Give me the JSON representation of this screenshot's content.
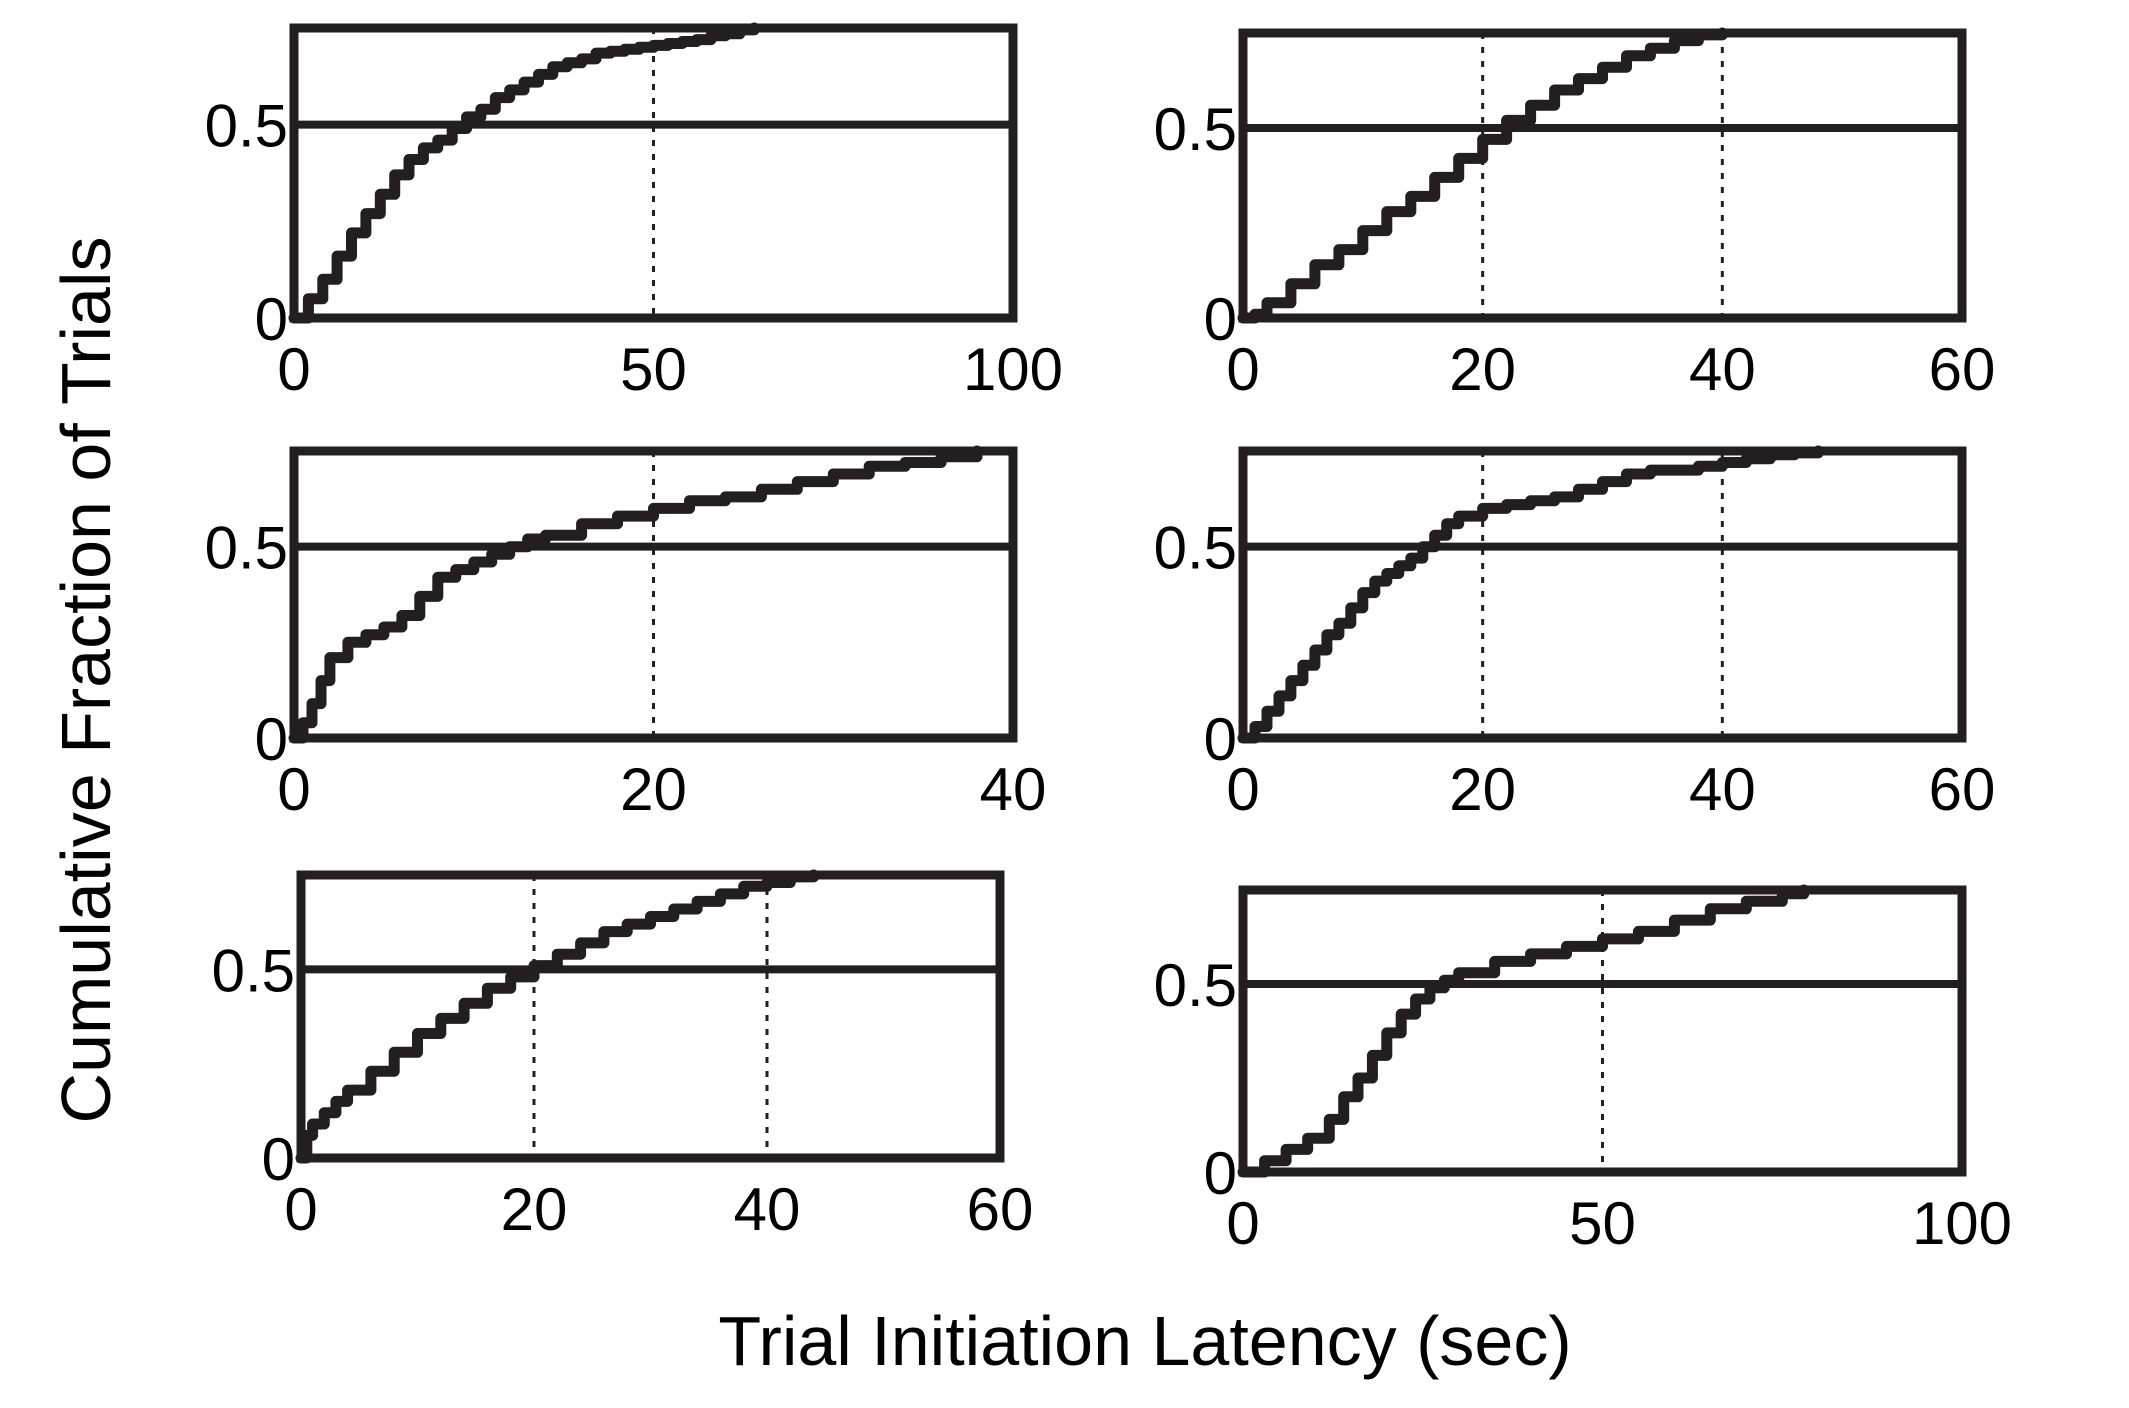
{
  "figure": {
    "ylabel": "Cumulative Fraction of Trials",
    "xlabel": "Trial Initiation Latency (sec)"
  },
  "colors": {
    "line": "#231f20",
    "background": "#ffffff"
  },
  "chart_data": [
    {
      "type": "line",
      "id": "p1",
      "xlim": [
        0,
        100
      ],
      "ylim": [
        0,
        0.75
      ],
      "xticks": [
        0,
        50,
        100
      ],
      "xtick_labels": [
        "0",
        "50",
        "100"
      ],
      "yticks": [
        0,
        0.5
      ],
      "ytick_labels": [
        "0",
        "0.5"
      ],
      "hline": 0.5,
      "vlines": [
        50
      ],
      "x": [
        0,
        2,
        4,
        6,
        8,
        10,
        12,
        14,
        16,
        18,
        20,
        22,
        24,
        26,
        28,
        30,
        32,
        34,
        36,
        38,
        40,
        42,
        44,
        46,
        48,
        50,
        52,
        54,
        56,
        58,
        60,
        62,
        64
      ],
      "y": [
        0,
        0.05,
        0.1,
        0.16,
        0.22,
        0.27,
        0.32,
        0.37,
        0.41,
        0.44,
        0.46,
        0.49,
        0.52,
        0.54,
        0.57,
        0.59,
        0.61,
        0.63,
        0.65,
        0.66,
        0.67,
        0.685,
        0.69,
        0.695,
        0.7,
        0.705,
        0.71,
        0.715,
        0.72,
        0.73,
        0.735,
        0.745,
        0.75
      ]
    },
    {
      "type": "line",
      "id": "p2",
      "xlim": [
        0,
        60
      ],
      "ylim": [
        0,
        0.75
      ],
      "xticks": [
        0,
        20,
        40,
        60
      ],
      "xtick_labels": [
        "0",
        "20",
        "40",
        "60"
      ],
      "yticks": [
        0,
        0.5
      ],
      "ytick_labels": [
        "0",
        "0.5"
      ],
      "hline": 0.5,
      "vlines": [
        20,
        40
      ],
      "x": [
        0,
        1,
        2,
        4,
        6,
        8,
        10,
        12,
        14,
        16,
        18,
        20,
        22,
        24,
        26,
        28,
        30,
        32,
        34,
        36,
        38,
        40
      ],
      "y": [
        0,
        0.01,
        0.04,
        0.09,
        0.14,
        0.18,
        0.23,
        0.28,
        0.32,
        0.37,
        0.42,
        0.47,
        0.52,
        0.56,
        0.6,
        0.63,
        0.66,
        0.69,
        0.71,
        0.73,
        0.745,
        0.75
      ]
    },
    {
      "type": "line",
      "id": "p3",
      "xlim": [
        0,
        40
      ],
      "ylim": [
        0,
        0.75
      ],
      "xticks": [
        0,
        20,
        40
      ],
      "xtick_labels": [
        "0",
        "20",
        "40"
      ],
      "yticks": [
        0,
        0.5
      ],
      "ytick_labels": [
        "0",
        "0.5"
      ],
      "hline": 0.5,
      "vlines": [
        20
      ],
      "x": [
        0,
        0.5,
        1,
        1.5,
        2,
        3,
        4,
        5,
        6,
        7,
        8,
        9,
        10,
        11,
        12,
        13,
        14,
        16,
        18,
        20,
        22,
        24,
        26,
        28,
        30,
        32,
        34,
        36,
        38
      ],
      "y": [
        0,
        0.04,
        0.09,
        0.15,
        0.21,
        0.25,
        0.27,
        0.29,
        0.32,
        0.37,
        0.42,
        0.44,
        0.46,
        0.48,
        0.5,
        0.52,
        0.53,
        0.56,
        0.58,
        0.6,
        0.62,
        0.63,
        0.65,
        0.67,
        0.69,
        0.71,
        0.72,
        0.735,
        0.75
      ]
    },
    {
      "type": "line",
      "id": "p4",
      "xlim": [
        0,
        60
      ],
      "ylim": [
        0,
        0.75
      ],
      "xticks": [
        0,
        20,
        40,
        60
      ],
      "xtick_labels": [
        "0",
        "20",
        "40",
        "60"
      ],
      "yticks": [
        0,
        0.5
      ],
      "ytick_labels": [
        "0",
        "0.5"
      ],
      "hline": 0.5,
      "vlines": [
        20,
        40
      ],
      "x": [
        0,
        1,
        2,
        3,
        4,
        5,
        6,
        7,
        8,
        9,
        10,
        11,
        12,
        13,
        14,
        15,
        16,
        17,
        18,
        20,
        22,
        24,
        26,
        28,
        30,
        32,
        34,
        36,
        38,
        40,
        42,
        44,
        46,
        48
      ],
      "y": [
        0,
        0.03,
        0.07,
        0.11,
        0.15,
        0.19,
        0.23,
        0.27,
        0.3,
        0.34,
        0.38,
        0.41,
        0.43,
        0.45,
        0.47,
        0.5,
        0.53,
        0.56,
        0.58,
        0.6,
        0.61,
        0.62,
        0.63,
        0.65,
        0.67,
        0.69,
        0.7,
        0.7,
        0.71,
        0.72,
        0.73,
        0.74,
        0.745,
        0.75
      ]
    },
    {
      "type": "line",
      "id": "p5",
      "xlim": [
        0,
        60
      ],
      "ylim": [
        0,
        0.75
      ],
      "xticks": [
        0,
        20,
        40,
        60
      ],
      "xtick_labels": [
        "0",
        "20",
        "40",
        "60"
      ],
      "yticks": [
        0,
        0.5
      ],
      "ytick_labels": [
        "0",
        "0.5"
      ],
      "hline": 0.5,
      "vlines": [
        20,
        40
      ],
      "x": [
        0,
        0.5,
        1,
        2,
        3,
        4,
        6,
        8,
        10,
        12,
        14,
        16,
        18,
        20,
        22,
        24,
        26,
        28,
        30,
        32,
        34,
        36,
        38,
        40,
        42,
        44
      ],
      "y": [
        0,
        0.06,
        0.09,
        0.12,
        0.15,
        0.18,
        0.23,
        0.28,
        0.33,
        0.37,
        0.41,
        0.45,
        0.48,
        0.51,
        0.54,
        0.57,
        0.6,
        0.62,
        0.64,
        0.66,
        0.68,
        0.7,
        0.72,
        0.73,
        0.745,
        0.75
      ]
    },
    {
      "type": "line",
      "id": "p6",
      "xlim": [
        0,
        100
      ],
      "ylim": [
        0,
        0.75
      ],
      "xticks": [
        0,
        50,
        100
      ],
      "xtick_labels": [
        "0",
        "50",
        "100"
      ],
      "yticks": [
        0,
        0.5
      ],
      "ytick_labels": [
        "0",
        "0.5"
      ],
      "hline": 0.5,
      "vlines": [
        50
      ],
      "x": [
        0,
        3,
        6,
        9,
        12,
        14,
        16,
        18,
        20,
        22,
        24,
        26,
        28,
        30,
        35,
        40,
        45,
        50,
        55,
        60,
        65,
        70,
        75,
        78
      ],
      "y": [
        0,
        0.03,
        0.06,
        0.09,
        0.14,
        0.2,
        0.25,
        0.31,
        0.37,
        0.42,
        0.46,
        0.49,
        0.51,
        0.53,
        0.56,
        0.58,
        0.6,
        0.62,
        0.64,
        0.67,
        0.7,
        0.72,
        0.74,
        0.75
      ]
    }
  ]
}
